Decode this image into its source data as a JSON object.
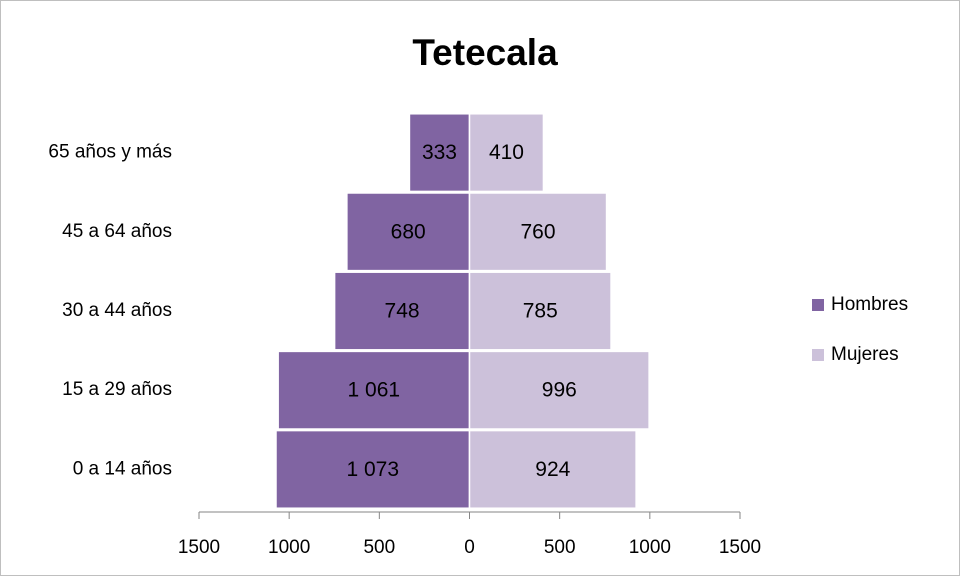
{
  "chart_data": {
    "type": "bar",
    "orientation": "horizontal",
    "stacked": true,
    "title": "Tetecala",
    "categories": [
      "0 a 14 años",
      "15 a 29 años",
      "30 a 44 años",
      "45 a 64 años",
      "65 años y más"
    ],
    "series": [
      {
        "name": "Hombres",
        "color": "#8064a2",
        "values": [
          -1073,
          -1061,
          -748,
          -680,
          -333
        ],
        "value_labels": [
          "1 073",
          "1 061",
          "748",
          "680",
          "333"
        ]
      },
      {
        "name": "Mujeres",
        "color": "#ccc1da",
        "values": [
          924,
          996,
          785,
          760,
          410
        ],
        "value_labels": [
          "924",
          "996",
          "785",
          "760",
          "410"
        ]
      }
    ],
    "xlim": [
      -1500,
      1500
    ],
    "xticks": [
      {
        "value": -1500,
        "label": "1500"
      },
      {
        "value": -1000,
        "label": "1000"
      },
      {
        "value": -500,
        "label": "500"
      },
      0,
      500,
      1000,
      1500
    ],
    "legend": "right",
    "grid": false
  }
}
